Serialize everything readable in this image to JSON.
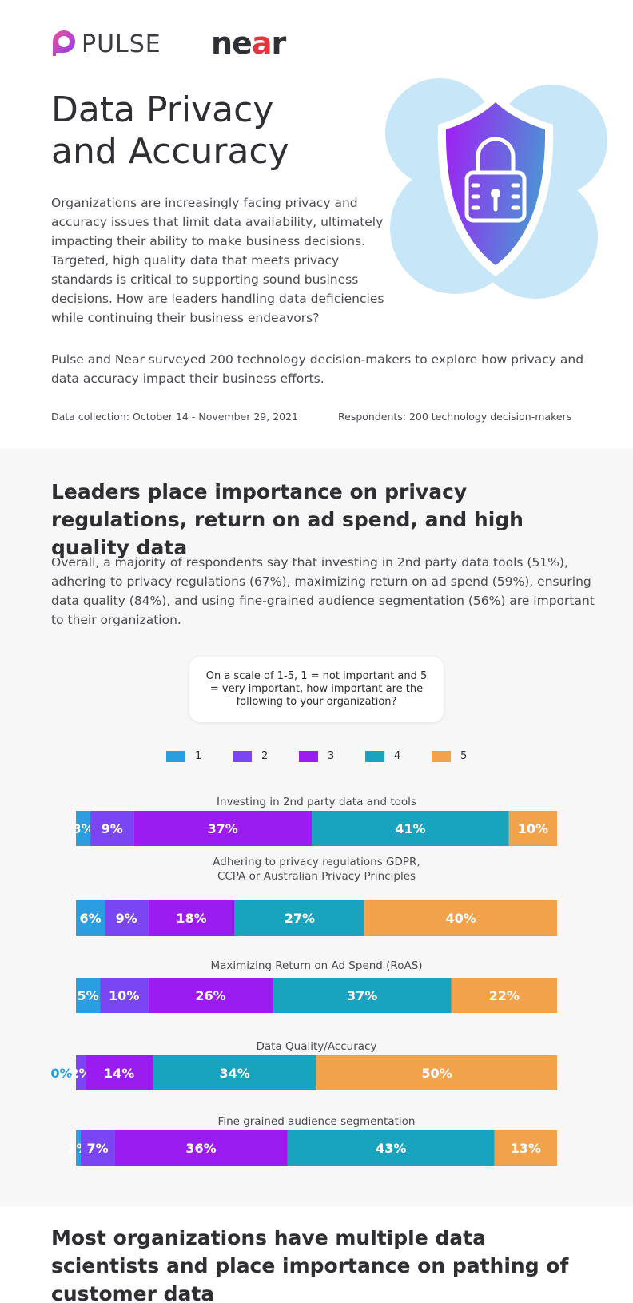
{
  "header": {
    "pulse_logo_text": "PULSE",
    "near_logo_text_before": "ne",
    "near_logo_text_accent": "a",
    "near_logo_text_after": "r"
  },
  "intro": {
    "title_line1": "Data Privacy",
    "title_line2": "and Accuracy",
    "paragraph": "Organizations are increasingly facing privacy and accuracy issues that limit data availability, ultimately impacting their ability to make business decisions. Targeted, high quality data that meets privacy standards is critical to supporting sound business decisions. How are leaders handling data deficiencies while continuing their business endeavors?",
    "survey_note": "Pulse and Near surveyed 200 technology decision-makers to explore how privacy and data accuracy impact their business efforts.",
    "data_collection": "Data collection: October 14 - November 29, 2021",
    "respondents": "Respondents: 200 technology decision-makers"
  },
  "section1": {
    "heading": "Leaders place importance on privacy regulations, return on ad spend, and high quality data",
    "body": "Overall, a majority of respondents say that investing in 2nd party data tools (51%), adhering to privacy regulations (67%), maximizing return on ad spend (59%), ensuring data quality (84%), and using fine-grained audience segmentation (56%) are important to their organization.",
    "question": "On a scale of 1-5, 1 = not important and 5 = very important, how important are the following to your organization?"
  },
  "section2": {
    "heading": "Most organizations have multiple data scientists and place importance on pathing of customer data"
  },
  "colors": {
    "1": "#2a9ee0",
    "2": "#7a45f2",
    "3": "#9b1cf0",
    "4": "#18a3bf",
    "5": "#f2a24a",
    "zero_label": "#2a9ee0",
    "shield_grad_start": "#a21cf5",
    "shield_grad_end": "#4f8fd6",
    "blob": "#c7e6f7"
  },
  "icons": {
    "pulse": "pulse-speech-bubble-icon",
    "shield": "shield-lock-icon"
  },
  "chart_data": {
    "type": "bar",
    "orientation": "horizontal",
    "stacked": true,
    "normalized": true,
    "legend_position": "top-center",
    "series": [
      {
        "name": "1",
        "values": [
          3,
          6,
          5,
          0,
          1
        ]
      },
      {
        "name": "2",
        "values": [
          9,
          9,
          10,
          2,
          7
        ]
      },
      {
        "name": "3",
        "values": [
          37,
          18,
          26,
          14,
          36
        ]
      },
      {
        "name": "4",
        "values": [
          41,
          27,
          37,
          34,
          43
        ]
      },
      {
        "name": "5",
        "values": [
          10,
          40,
          22,
          50,
          13
        ]
      }
    ],
    "categories": [
      "Investing in 2nd party data and tools",
      "Adhering to privacy regulations GDPR,\nCCPA or Australian Privacy Principles",
      "Maximizing Return on Ad Spend (RoAS)",
      "Data Quality/Accuracy",
      "Fine grained audience segmentation"
    ]
  }
}
